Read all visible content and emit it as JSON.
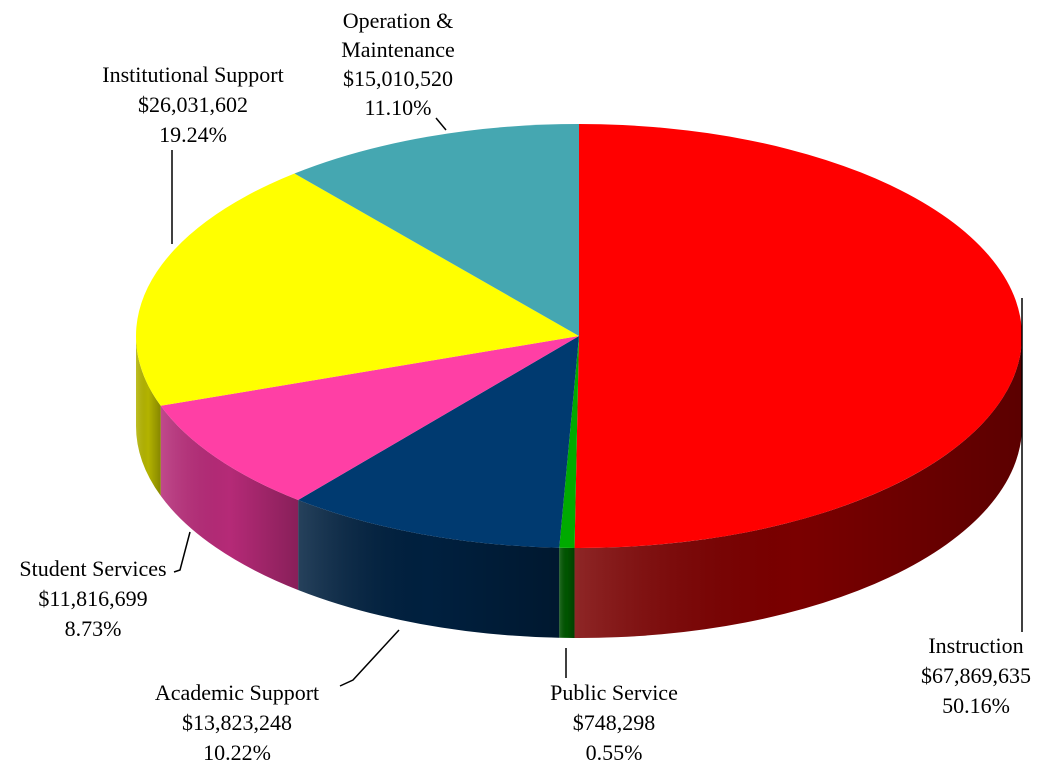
{
  "chart_data": {
    "type": "pie",
    "title": "",
    "slices": [
      {
        "label": "Instruction",
        "amount": "$67,869,635",
        "percent": "50.16%",
        "value": 50.16,
        "color": "#ff0000",
        "side_color": "#7a0000"
      },
      {
        "label": "Public Service",
        "amount": "$748,298",
        "percent": "0.55%",
        "value": 0.55,
        "color": "#00aa00",
        "side_color": "#005500"
      },
      {
        "label": "Academic Support",
        "amount": "$13,823,248",
        "percent": "10.22%",
        "value": 10.22,
        "color": "#003a70",
        "side_color": "#00203f"
      },
      {
        "label": "Student Services",
        "amount": "$11,816,699",
        "percent": "8.73%",
        "value": 8.73,
        "color": "#ff3fa5",
        "side_color": "#b52a77"
      },
      {
        "label": "Institutional Support",
        "amount": "$26,031,602",
        "percent": "19.24%",
        "value": 19.24,
        "color": "#ffff00",
        "side_color": "#b3b300"
      },
      {
        "label_line1": "Operation &",
        "label": "Maintenance",
        "amount": "$15,010,520",
        "percent": "11.10%",
        "value": 11.1,
        "color": "#45a7b1",
        "side_color": "#2d7880"
      }
    ]
  }
}
